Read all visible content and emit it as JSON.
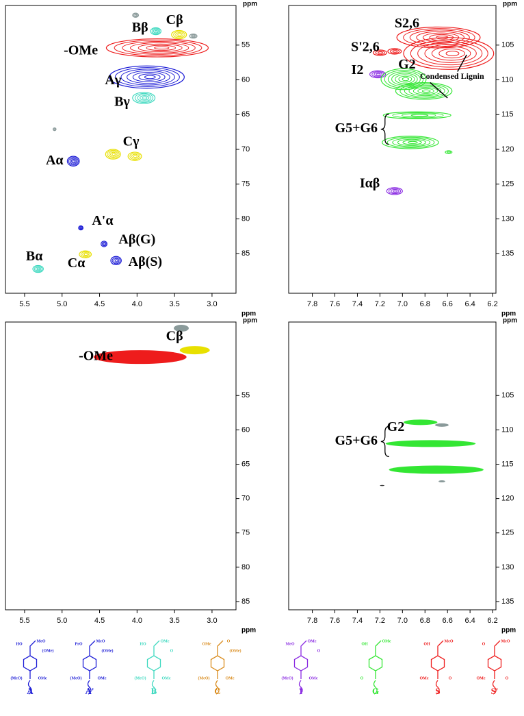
{
  "chart_data": [
    {
      "type": "contour",
      "contour_style": "lines",
      "x_label": "ppm",
      "y_label": "ppm",
      "xlim": [
        5.755,
        2.68
      ],
      "ylim": [
        49.3,
        90.7
      ],
      "xticks": [
        5.5,
        {
          "value": 5,
          "label": "5.0"
        },
        4.5,
        {
          "value": 4,
          "label": "4.0"
        },
        3.5,
        {
          "value": 3,
          "label": "3.0"
        }
      ],
      "yticks": [
        55,
        60,
        65,
        70,
        75,
        80,
        85
      ],
      "peaks": [
        {
          "x": 4.02,
          "y": 50.7,
          "wx": 0.04,
          "wy": 0.3,
          "color": "#8a9a9a"
        },
        {
          "x": 3.75,
          "y": 53.0,
          "wx": 0.07,
          "wy": 0.5,
          "color": "#3fd9c0"
        },
        {
          "x": 3.44,
          "y": 53.5,
          "wx": 0.1,
          "wy": 0.6,
          "color": "#e8e000"
        },
        {
          "x": 3.25,
          "y": 53.7,
          "wx": 0.05,
          "wy": 0.3,
          "color": "#8a9a9a"
        },
        {
          "x": 3.73,
          "y": 55.4,
          "wx": 0.68,
          "wy": 1.3,
          "color": "#ee1c1c"
        },
        {
          "x": 3.87,
          "y": 59.6,
          "wx": 0.5,
          "wy": 1.6,
          "color": "#1c1cd6"
        },
        {
          "x": 3.91,
          "y": 62.6,
          "wx": 0.15,
          "wy": 0.8,
          "color": "#3fd9c0"
        },
        {
          "x": 5.1,
          "y": 67.1,
          "wx": 0.02,
          "wy": 0.2,
          "color": "#8a9a9a"
        },
        {
          "x": 4.32,
          "y": 70.7,
          "wx": 0.1,
          "wy": 0.7,
          "color": "#e8e000"
        },
        {
          "x": 4.03,
          "y": 71.0,
          "wx": 0.09,
          "wy": 0.6,
          "color": "#e8e000"
        },
        {
          "x": 4.85,
          "y": 71.7,
          "wx": 0.08,
          "wy": 0.7,
          "color": "#1c1cd6"
        },
        {
          "x": 4.75,
          "y": 81.3,
          "wx": 0.03,
          "wy": 0.3,
          "color": "#1c1cd6"
        },
        {
          "x": 4.44,
          "y": 83.6,
          "wx": 0.04,
          "wy": 0.4,
          "color": "#1c1cd6"
        },
        {
          "x": 4.69,
          "y": 85.1,
          "wx": 0.08,
          "wy": 0.5,
          "color": "#e8e000"
        },
        {
          "x": 4.28,
          "y": 86.0,
          "wx": 0.07,
          "wy": 0.6,
          "color": "#1c1cd6"
        },
        {
          "x": 5.32,
          "y": 87.2,
          "wx": 0.07,
          "wy": 0.5,
          "color": "#3fd9c0"
        }
      ],
      "annotations": [
        {
          "text": "Bβ",
          "x": 3.96,
          "y": 52.6
        },
        {
          "text": "Cβ",
          "x": 3.5,
          "y": 51.5
        },
        {
          "text": "-OMe",
          "x": 4.75,
          "y": 55.9
        },
        {
          "text": "Aγ",
          "x": 4.32,
          "y": 60.2
        },
        {
          "text": "Bγ",
          "x": 4.2,
          "y": 63.3
        },
        {
          "text": "Cγ",
          "x": 4.08,
          "y": 69.0
        },
        {
          "text": "Aα",
          "x": 5.1,
          "y": 71.7
        },
        {
          "text": "A'α",
          "x": 4.46,
          "y": 80.4
        },
        {
          "text": "Aβ(G)",
          "x": 4.0,
          "y": 83.1
        },
        {
          "text": "Cα",
          "x": 4.81,
          "y": 86.5
        },
        {
          "text": "Aβ(S)",
          "x": 3.89,
          "y": 86.3
        },
        {
          "text": "Bα",
          "x": 5.37,
          "y": 85.5
        }
      ]
    },
    {
      "type": "contour",
      "contour_style": "lines",
      "x_label": "ppm",
      "y_label": "ppm",
      "xlim": [
        8.01,
        6.17
      ],
      "ylim": [
        99.3,
        140.7
      ],
      "xticks": [
        7.8,
        7.6,
        7.4,
        7.2,
        {
          "value": 7,
          "label": "7.0"
        },
        6.8,
        6.6,
        6.4,
        6.2
      ],
      "yticks": [
        105,
        110,
        115,
        120,
        125,
        130,
        135
      ],
      "peaks": [
        {
          "x": 6.68,
          "y": 103.9,
          "wx": 0.37,
          "wy": 1.5,
          "color": "#ee1c1c"
        },
        {
          "x": 6.59,
          "y": 106.2,
          "wx": 0.4,
          "wy": 2.3,
          "color": "#ee1c1c"
        },
        {
          "x": 7.2,
          "y": 106.1,
          "wx": 0.06,
          "wy": 0.4,
          "color": "#ee1c1c"
        },
        {
          "x": 7.07,
          "y": 105.9,
          "wx": 0.06,
          "wy": 0.4,
          "color": "#ee1c1c"
        },
        {
          "x": 7.22,
          "y": 109.2,
          "wx": 0.07,
          "wy": 0.5,
          "color": "#8a2be2"
        },
        {
          "x": 6.99,
          "y": 109.9,
          "wx": 0.2,
          "wy": 1.5,
          "color": "#33e633"
        },
        {
          "x": 6.81,
          "y": 111.6,
          "wx": 0.25,
          "wy": 1.2,
          "color": "#33e633"
        },
        {
          "x": 6.87,
          "y": 115.1,
          "wx": 0.3,
          "wy": 0.5,
          "color": "#33e633"
        },
        {
          "x": 6.93,
          "y": 119.0,
          "wx": 0.25,
          "wy": 0.9,
          "color": "#33e633"
        },
        {
          "x": 6.59,
          "y": 120.4,
          "wx": 0.03,
          "wy": 0.2,
          "color": "#33e633"
        },
        {
          "x": 7.07,
          "y": 126.0,
          "wx": 0.07,
          "wy": 0.5,
          "color": "#8a2be2"
        }
      ],
      "annotations": [
        {
          "text": "S2,6",
          "x": 6.96,
          "y": 102.0
        },
        {
          "text": "S'2,6",
          "x": 7.33,
          "y": 105.4
        },
        {
          "text": "I2",
          "x": 7.4,
          "y": 108.7
        },
        {
          "text": "G2",
          "x": 6.96,
          "y": 107.9
        },
        {
          "text": "Condensed Lignin",
          "x": 6.56,
          "y": 109.6
        },
        {
          "text": "G5+G6",
          "x": 7.41,
          "y": 117.1
        },
        {
          "text": "Iαβ",
          "x": 7.29,
          "y": 125.0
        }
      ]
    },
    {
      "type": "contour",
      "contour_style": "filled",
      "x_label": "ppm",
      "y_label": "ppm",
      "xlim": [
        5.755,
        2.68
      ],
      "ylim": [
        44.3,
        86.2
      ],
      "xticks": [
        5.5,
        {
          "value": 5,
          "label": "5.0"
        },
        4.5,
        {
          "value": 4,
          "label": "4.0"
        },
        3.5,
        {
          "value": 3,
          "label": "3.0"
        }
      ],
      "yticks": [
        55,
        60,
        65,
        70,
        75,
        80,
        85
      ],
      "peaks": [
        {
          "x": 3.41,
          "y": 45.2,
          "wx": 0.1,
          "wy": 0.5,
          "color": "#8a9a9a"
        },
        {
          "x": 3.23,
          "y": 48.4,
          "wx": 0.2,
          "wy": 0.6,
          "color": "#e8e000"
        },
        {
          "x": 3.96,
          "y": 49.4,
          "wx": 0.62,
          "wy": 1.0,
          "color": "#ee1c1c"
        }
      ],
      "annotations": [
        {
          "text": "Cβ",
          "x": 3.5,
          "y": 46.5
        },
        {
          "text": "-OMe",
          "x": 4.55,
          "y": 49.4
        }
      ]
    },
    {
      "type": "contour",
      "contour_style": "filled",
      "x_label": "ppm",
      "y_label": "ppm",
      "xlim": [
        8.01,
        6.17
      ],
      "ylim": [
        94.3,
        136.2
      ],
      "xticks": [
        7.8,
        7.6,
        7.4,
        7.2,
        {
          "value": 7,
          "label": "7.0"
        },
        6.8,
        6.6,
        6.4,
        6.2
      ],
      "yticks": [
        105,
        110,
        115,
        120,
        125,
        130,
        135
      ],
      "peaks": [
        {
          "x": 6.84,
          "y": 108.9,
          "wx": 0.15,
          "wy": 0.4,
          "color": "#33e633"
        },
        {
          "x": 6.65,
          "y": 109.3,
          "wx": 0.06,
          "wy": 0.25,
          "color": "#8a9a9a"
        },
        {
          "x": 6.75,
          "y": 112.0,
          "wx": 0.4,
          "wy": 0.5,
          "color": "#33e633"
        },
        {
          "x": 6.7,
          "y": 115.8,
          "wx": 0.42,
          "wy": 0.6,
          "color": "#33e633"
        },
        {
          "x": 6.65,
          "y": 117.5,
          "wx": 0.03,
          "wy": 0.15,
          "color": "#8a9a9a"
        },
        {
          "x": 7.18,
          "y": 118.1,
          "wx": 0.02,
          "wy": 0.08,
          "color": "#333333"
        }
      ],
      "annotations": [
        {
          "text": "G2",
          "x": 7.06,
          "y": 109.7
        },
        {
          "text": "G5+G6",
          "x": 7.41,
          "y": 111.7
        }
      ]
    }
  ],
  "structures": [
    {
      "label": "A",
      "color": "#1c1cd6",
      "atoms": [
        "HO",
        "MeO",
        "(MeO)",
        "OMe",
        "(OMe)",
        "O"
      ]
    },
    {
      "label": "A'",
      "color": "#1c1cd6",
      "atoms": [
        "PrO",
        "MeO",
        "(MeO)",
        "OMe",
        "(OMe)",
        "O"
      ]
    },
    {
      "label": "B",
      "color": "#3fd9c0",
      "atoms": [
        "HO",
        "OMe",
        "(MeO)",
        "OMe",
        "O",
        "O"
      ]
    },
    {
      "label": "C",
      "color": "#d98a1a",
      "atoms": [
        "OMe",
        "O",
        "(MeO)",
        "OMe",
        "(OMe)",
        "O"
      ]
    },
    {
      "label": "I",
      "color": "#8a2be2",
      "atoms": [
        "MeO",
        "OMe",
        "(MeO)",
        "OMe",
        "O",
        "O"
      ]
    },
    {
      "label": "G",
      "color": "#33e633",
      "atoms": [
        "OH",
        "OMe",
        "O"
      ]
    },
    {
      "label": "S",
      "color": "#ee1c1c",
      "atoms": [
        "OH",
        "MeO",
        "OMe",
        "O"
      ]
    },
    {
      "label": "S'",
      "color": "#ee1c1c",
      "atoms": [
        "O",
        "MeO",
        "OMe",
        "O"
      ]
    }
  ]
}
